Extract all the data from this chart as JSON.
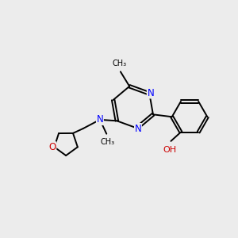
{
  "background_color": "#ececec",
  "bond_color": "#000000",
  "n_color": "#0000ff",
  "o_color": "#cc0000",
  "text_color": "#000000",
  "figsize": [
    3.0,
    3.0
  ],
  "dpi": 100,
  "lw": 1.4,
  "dbo": 0.055,
  "xlim": [
    0,
    10
  ],
  "ylim": [
    0,
    10
  ]
}
